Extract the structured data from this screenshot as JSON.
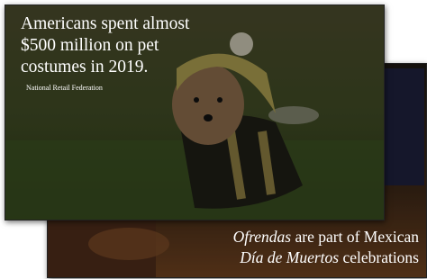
{
  "back_card": {
    "caption": [
      [
        {
          "text": "Ofrendas",
          "italic": true
        },
        {
          "text": " are part of Mexican",
          "italic": false
        }
      ],
      [
        {
          "text": "Día de Muertos",
          "italic": true
        },
        {
          "text": " celebrations",
          "italic": false
        }
      ]
    ]
  },
  "front_card": {
    "title": [
      "Americans spent almost",
      "$500 million on pet",
      "costumes in 2019."
    ],
    "source": "National Retail Federation"
  }
}
